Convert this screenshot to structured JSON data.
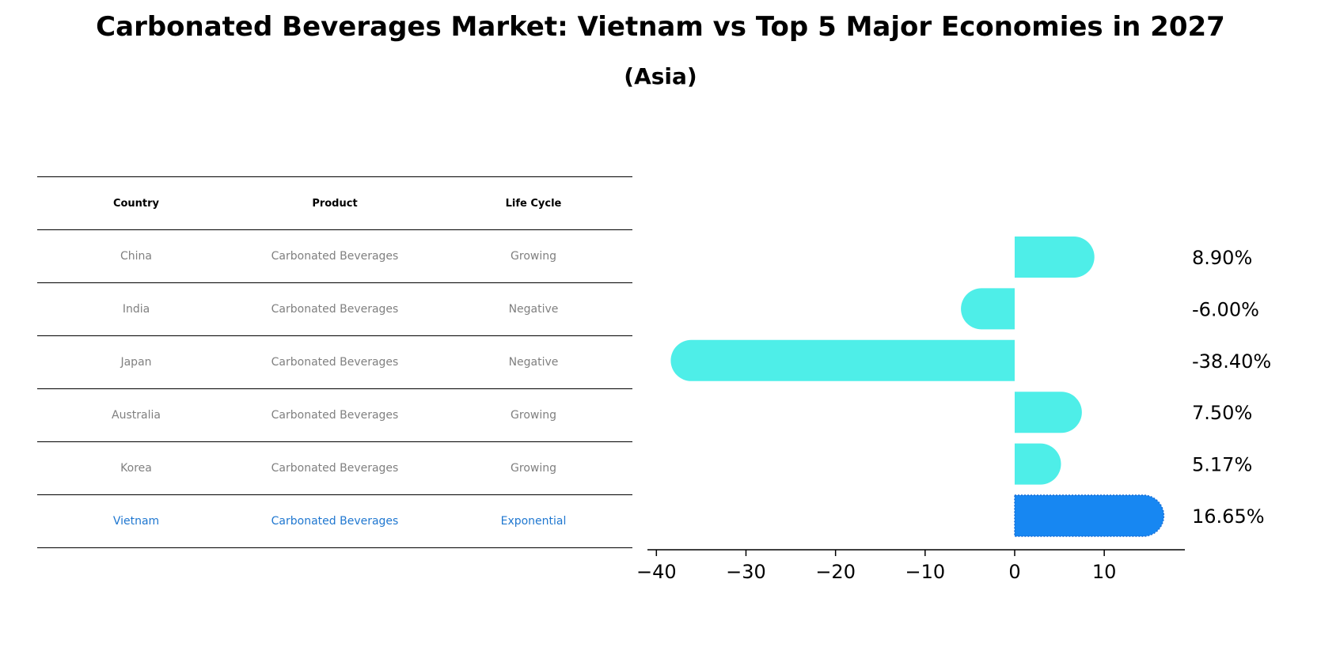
{
  "title": "Carbonated Beverages Market: Vietnam vs Top 5 Major Economies in 2027",
  "subtitle": "(Asia)",
  "table": {
    "headers": [
      "Country",
      "Product",
      "Life Cycle"
    ],
    "rows": [
      [
        "China",
        "Carbonated Beverages",
        "Growing"
      ],
      [
        "India",
        "Carbonated Beverages",
        "Negative"
      ],
      [
        "Japan",
        "Carbonated Beverages",
        "Negative"
      ],
      [
        "Australia",
        "Carbonated Beverages",
        "Growing"
      ],
      [
        "Korea",
        "Carbonated Beverages",
        "Growing"
      ],
      [
        "Vietnam",
        "Carbonated Beverages",
        "Exponential"
      ]
    ],
    "highlight_color": "#1f77d0",
    "text_color": "#808080"
  },
  "chart_data": {
    "type": "bar",
    "orientation": "horizontal",
    "categories": [
      "China",
      "India",
      "Japan",
      "Australia",
      "Korea",
      "Vietnam"
    ],
    "values": [
      8.9,
      -6.0,
      -38.4,
      7.5,
      5.17,
      16.65
    ],
    "value_labels": [
      "8.90%",
      "-6.00%",
      "-38.40%",
      "7.50%",
      "5.17%",
      "16.65%"
    ],
    "xlim": [
      -41,
      19
    ],
    "xticks": [
      -40,
      -30,
      -20,
      -10,
      0,
      10
    ],
    "xtick_labels": [
      "−40",
      "−30",
      "−20",
      "−10",
      "0",
      "10"
    ],
    "colors": [
      "#4eeee8",
      "#4eeee8",
      "#4eeee8",
      "#4eeee8",
      "#4eeee8",
      "#1787f2"
    ],
    "highlight_category": "Vietnam",
    "grid": false
  }
}
